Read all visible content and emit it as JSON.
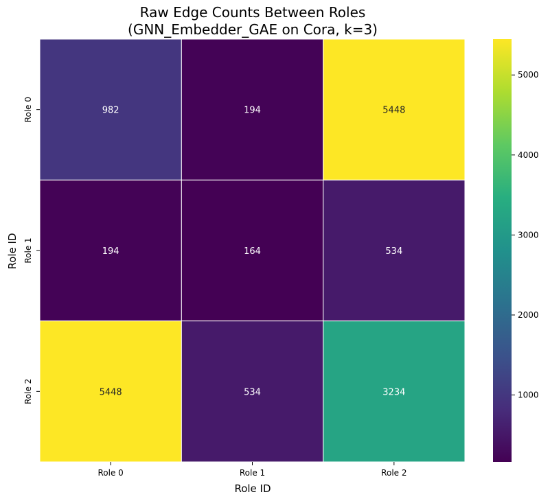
{
  "chart_data": {
    "type": "heatmap",
    "title": "Raw Edge Counts Between Roles",
    "subtitle": "(GNN_Embedder_GAE on Cora, k=3)",
    "xlabel": "Role ID",
    "ylabel": "Role ID",
    "x_categories": [
      "Role 0",
      "Role 1",
      "Role 2"
    ],
    "y_categories": [
      "Role 0",
      "Role 1",
      "Role 2"
    ],
    "values": [
      [
        982,
        194,
        5448
      ],
      [
        194,
        164,
        534
      ],
      [
        5448,
        534,
        3234
      ]
    ],
    "colormap": "viridis",
    "value_range": [
      164,
      5448
    ],
    "colorbar_ticks": [
      1000,
      2000,
      3000,
      4000,
      5000
    ],
    "colorbar_tick_labels": [
      "1000",
      "2000",
      "3000",
      "4000",
      "5000"
    ],
    "colorbar_position": "right",
    "grid": false
  }
}
